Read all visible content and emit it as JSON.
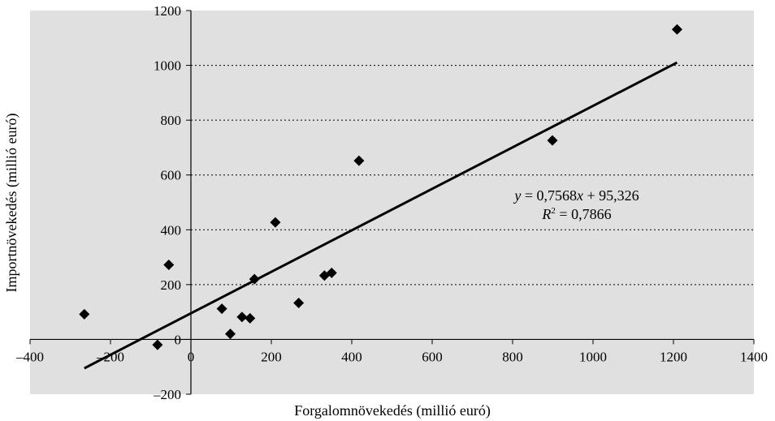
{
  "chart_data": {
    "type": "scatter",
    "title": "",
    "xlabel": "Forgalomnövekedés (millió euró)",
    "ylabel": "Importnövekedés (millió euró)",
    "xlim": [
      -400,
      1400
    ],
    "ylim": [
      -200,
      1200
    ],
    "x_ticks": [
      -400,
      -200,
      0,
      200,
      400,
      600,
      800,
      1000,
      1200,
      1400
    ],
    "y_ticks": [
      -200,
      0,
      200,
      400,
      600,
      800,
      1000,
      1200
    ],
    "x_tick_labels": [
      "–400",
      "–200",
      "0",
      "200",
      "400",
      "600",
      "800",
      "1000",
      "1200",
      "1400"
    ],
    "y_tick_labels": [
      "–200",
      "0",
      "200",
      "400",
      "600",
      "800",
      "1000",
      "1200"
    ],
    "grid": "horizontal dotted at positive y ticks",
    "plot_background": "#e0e0e0",
    "marker": "diamond",
    "marker_color": "#000000",
    "points": [
      {
        "x": -265,
        "y": 92
      },
      {
        "x": -83,
        "y": -20
      },
      {
        "x": -55,
        "y": 272
      },
      {
        "x": 77,
        "y": 112
      },
      {
        "x": 98,
        "y": 20
      },
      {
        "x": 127,
        "y": 82
      },
      {
        "x": 147,
        "y": 77
      },
      {
        "x": 158,
        "y": 220
      },
      {
        "x": 210,
        "y": 427
      },
      {
        "x": 268,
        "y": 133
      },
      {
        "x": 332,
        "y": 233
      },
      {
        "x": 350,
        "y": 243
      },
      {
        "x": 418,
        "y": 652
      },
      {
        "x": 899,
        "y": 726
      },
      {
        "x": 1209,
        "y": 1131
      }
    ],
    "trendline": {
      "slope": 0.7568,
      "intercept": 95.326,
      "x_range": [
        -265,
        1209
      ],
      "color": "#000000"
    },
    "annotations": {
      "equation_prefix": "y",
      "equation_mid": " = 0,7568",
      "equation_var": "x",
      "equation_suffix": " + 95,326",
      "r2_prefix": "R",
      "r2_exp": "2",
      "r2_value": " = 0,7866"
    }
  }
}
